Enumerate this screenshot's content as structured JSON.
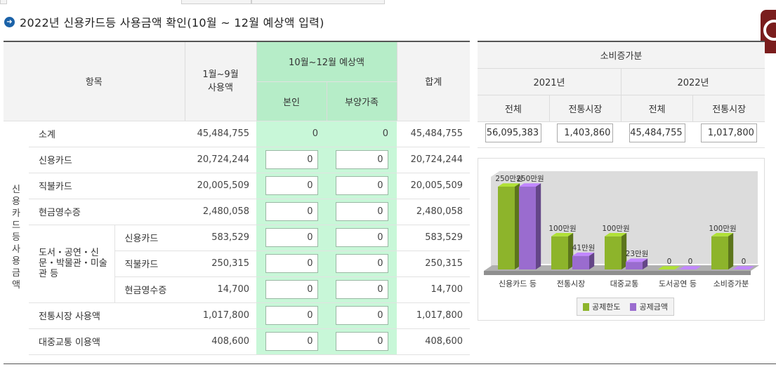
{
  "title": "2022년 신용카드등 사용금액 확인(10월 ~ 12월 예상액 입력)",
  "colors": {
    "green_header": "#b6edc8",
    "green_cell": "#c8f7d8",
    "bullet": "#1b62a8",
    "bar_limit": "#8db42b",
    "bar_deduct": "#9a6ccf"
  },
  "main_table": {
    "headers": {
      "item": "항목",
      "jan_sep": "1월~9월\n사용액",
      "oct_dec": "10월~12월 예상액",
      "self": "본인",
      "dependents": "부양가족",
      "total": "합계"
    },
    "side_label": "신용카드등 사용금액",
    "culture_label": "도서・공연・신문・박물관・미술관 등",
    "rows": [
      {
        "label": "소계",
        "jan_sep": "45,484,755",
        "self": "0",
        "dep": "0",
        "total": "45,484,755"
      },
      {
        "label": "신용카드",
        "jan_sep": "20,724,244",
        "self": "0",
        "dep": "0",
        "total": "20,724,244"
      },
      {
        "label": "직불카드",
        "jan_sep": "20,005,509",
        "self": "0",
        "dep": "0",
        "total": "20,005,509"
      },
      {
        "label": "현금영수증",
        "jan_sep": "2,480,058",
        "self": "0",
        "dep": "0",
        "total": "2,480,058"
      },
      {
        "label": "신용카드",
        "jan_sep": "583,529",
        "self": "0",
        "dep": "0",
        "total": "583,529"
      },
      {
        "label": "직불카드",
        "jan_sep": "250,315",
        "self": "0",
        "dep": "0",
        "total": "250,315"
      },
      {
        "label": "현금영수증",
        "jan_sep": "14,700",
        "self": "0",
        "dep": "0",
        "total": "14,700"
      },
      {
        "label": "전통시장 사용액",
        "jan_sep": "1,017,800",
        "self": "0",
        "dep": "0",
        "total": "1,017,800"
      },
      {
        "label": "대중교통 이용액",
        "jan_sep": "408,600",
        "self": "0",
        "dep": "0",
        "total": "408,600"
      }
    ]
  },
  "consumption": {
    "title": "소비증가분",
    "years": [
      "2021년",
      "2022년"
    ],
    "cols": [
      "전체",
      "전통시장",
      "전체",
      "전통시장"
    ],
    "values": [
      "56,095,383",
      "1,403,860",
      "45,484,755",
      "1,017,800"
    ]
  },
  "chart_data": {
    "type": "bar",
    "categories": [
      "신용카드 등",
      "전통시장",
      "대중교통",
      "도서공연 등",
      "소비증가분"
    ],
    "series": [
      {
        "name": "공제한도",
        "values": [
          2500000,
          1000000,
          1000000,
          0,
          1000000
        ],
        "labels": [
          "250만원",
          "100만원",
          "100만원",
          "0",
          "100만원"
        ]
      },
      {
        "name": "공제금액",
        "values": [
          2500000,
          410000,
          230000,
          0,
          0
        ],
        "labels": [
          "250만원",
          "41만원",
          "23만원",
          "0",
          "0"
        ]
      }
    ],
    "ylim": [
      0,
      2500000
    ],
    "legend": "bottom"
  }
}
